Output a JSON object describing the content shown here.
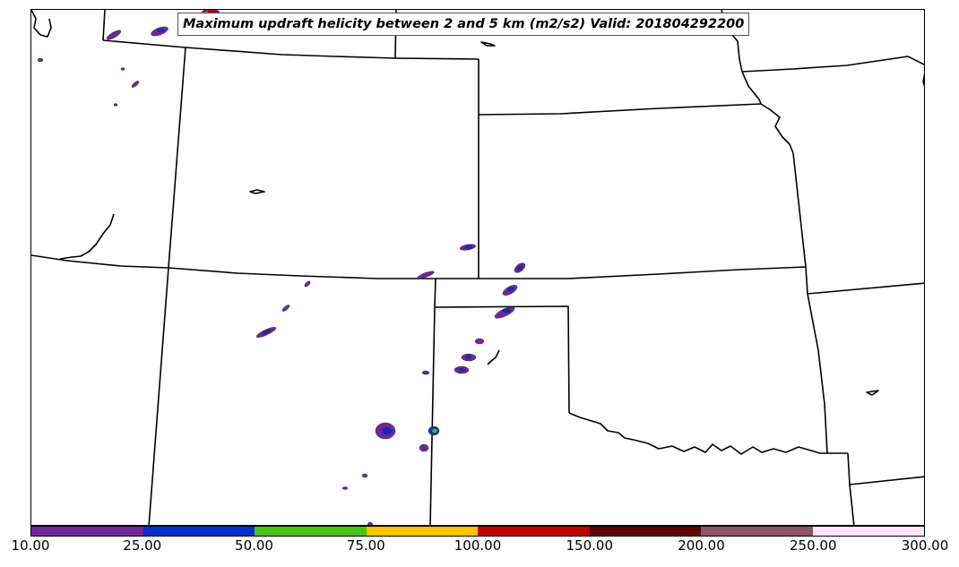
{
  "title": "Maximum updraft helicity between 2 and 5 km (m2/s2) Valid: 201804292200",
  "colorbar": {
    "levels": [
      "10.00",
      "25.00",
      "50.00",
      "75.00",
      "100.00",
      "150.00",
      "200.00",
      "250.00",
      "300.00"
    ],
    "colors": [
      "#6f2896",
      "#0a2fcc",
      "#45c512",
      "#ffc400",
      "#c00000",
      "#5e0000",
      "#8a5566",
      "#fde3f5"
    ]
  }
}
